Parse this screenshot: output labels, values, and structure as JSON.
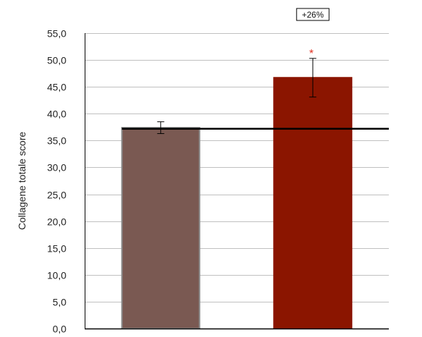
{
  "chart_data": {
    "type": "bar",
    "title": "",
    "xlabel": "",
    "ylabel": "Collagene totale score",
    "ylim": [
      0,
      55
    ],
    "ytick_step": 5,
    "ytick_labels": [
      "0,0",
      "5,0",
      "10,0",
      "15,0",
      "20,0",
      "25,0",
      "30,0",
      "35,0",
      "40,0",
      "45,0",
      "50,0",
      "55,0"
    ],
    "grid": true,
    "legend": "none",
    "categories": [
      "",
      ""
    ],
    "values": [
      37.4,
      46.7
    ],
    "error_bars": [
      1.1,
      3.6
    ],
    "bar_colors": [
      "#7a5952",
      "#8b1500"
    ],
    "bar_outline_colors": [
      "#8c8c8c",
      "#8b1500"
    ],
    "reference_line": 37.2,
    "annotations": {
      "percent_change": "+26%",
      "significance_marker": "*",
      "significance_color": "#e03020"
    }
  }
}
